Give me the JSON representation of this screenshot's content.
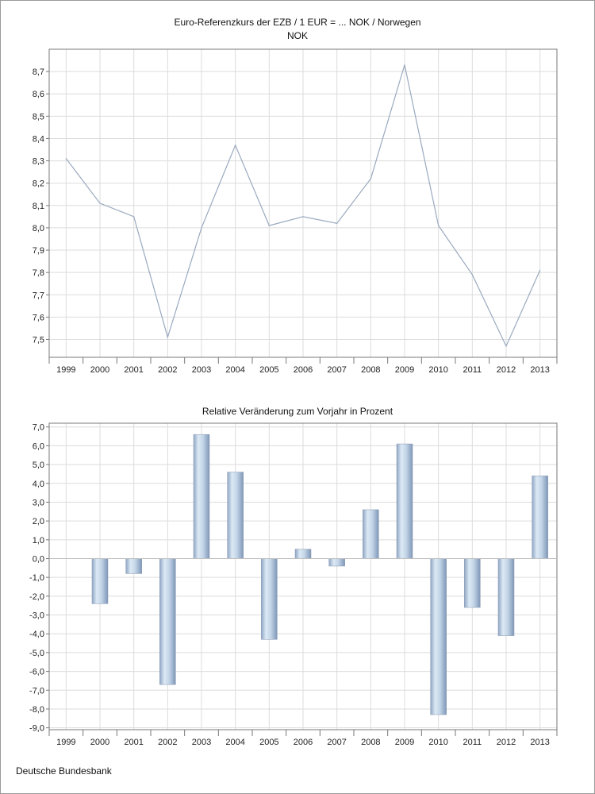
{
  "footer": "Deutsche Bundesbank",
  "chart_data": [
    {
      "type": "line",
      "title": "Euro-Referenzkurs der EZB / 1 EUR = ... NOK / Norwegen",
      "subtitle": "NOK",
      "categories": [
        "1999",
        "2000",
        "2001",
        "2002",
        "2003",
        "2004",
        "2005",
        "2006",
        "2007",
        "2008",
        "2009",
        "2010",
        "2011",
        "2012",
        "2013"
      ],
      "values": [
        8.31,
        8.11,
        8.05,
        7.51,
        8.0,
        8.37,
        8.01,
        8.05,
        8.02,
        8.22,
        8.73,
        8.01,
        7.79,
        7.47,
        7.81
      ],
      "ylim": [
        7.42,
        8.8
      ],
      "yticks": [
        "7,5",
        "7,6",
        "7,7",
        "7,8",
        "7,9",
        "8,0",
        "8,1",
        "8,2",
        "8,3",
        "8,4",
        "8,5",
        "8,6",
        "8,7"
      ],
      "grid": true,
      "color": "#9aaabf"
    },
    {
      "type": "bar",
      "title": "Relative Veränderung zum Vorjahr in Prozent",
      "categories": [
        "1999",
        "2000",
        "2001",
        "2002",
        "2003",
        "2004",
        "2005",
        "2006",
        "2007",
        "2008",
        "2009",
        "2010",
        "2011",
        "2012",
        "2013"
      ],
      "values": [
        null,
        -2.4,
        -0.8,
        -6.7,
        6.6,
        4.6,
        -4.3,
        0.5,
        -0.4,
        2.6,
        6.1,
        -8.3,
        -2.6,
        -4.1,
        4.4
      ],
      "ylim": [
        -9.1,
        7.2
      ],
      "yticks": [
        "-9,0",
        "-8,0",
        "-7,0",
        "-6,0",
        "-5,0",
        "-4,0",
        "-3,0",
        "-2,0",
        "-1,0",
        "0,0",
        "1,0",
        "2,0",
        "3,0",
        "4,0",
        "5,0",
        "6,0",
        "7,0"
      ],
      "grid": true,
      "color": "#b4c8dc"
    }
  ]
}
